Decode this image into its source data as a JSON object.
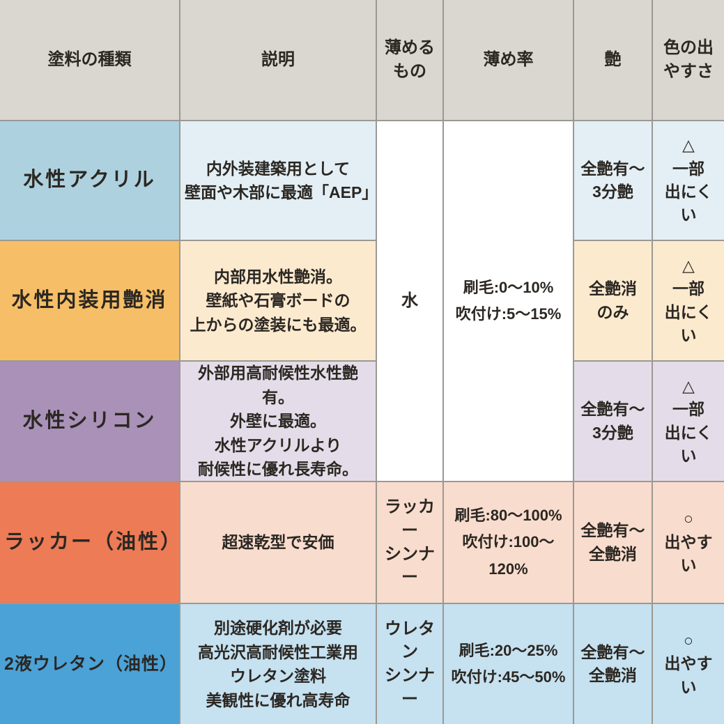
{
  "border_color": "#9b9893",
  "text_color": "#2b2722",
  "header": {
    "bg": "#dad7d1",
    "columns": [
      "塗料の種類",
      "説明",
      "薄める\nもの",
      "薄め率",
      "艶",
      "色の出\nやすさ"
    ]
  },
  "water_group": {
    "bg": "#ffffff",
    "thinner": "水",
    "rate": "刷毛:0〜10%\n吹付け:5〜15%"
  },
  "rows": [
    {
      "name": "水性アクリル",
      "desc": "内外装建築用として\n壁面や木部に最適「AEP」",
      "gloss": "全艶有〜\n3分艶",
      "color_ease": "△\n一部\n出にくい",
      "name_bg": "#aed1df",
      "cell_bg": "#e3eff5"
    },
    {
      "name": "水性内装用艶消",
      "desc": "内部用水性艶消。\n壁紙や石膏ボードの\n上からの塗装にも最適。",
      "gloss": "全艶消\nのみ",
      "color_ease": "△\n一部\n出にくい",
      "name_bg": "#f6be67",
      "cell_bg": "#fceacf"
    },
    {
      "name": "水性シリコン",
      "desc": "外部用高耐候性水性艶有。\n外壁に最適。\n水性アクリルより\n耐候性に優れ長寿命。",
      "gloss": "全艶有〜\n3分艶",
      "color_ease": "△\n一部\n出にくい",
      "name_bg": "#a991b8",
      "cell_bg": "#e4dde9"
    },
    {
      "name": "ラッカー（油性）",
      "desc": "超速乾型で安価",
      "thinner": "ラッカー\nシンナー",
      "rate": "刷毛:80〜100%\n吹付け:100〜120%",
      "gloss": "全艶有〜\n全艶消",
      "color_ease": "○\n出やすい",
      "name_bg": "#ec7b56",
      "cell_bg": "#f8dccd"
    },
    {
      "name": "2液ウレタン（油性）",
      "desc": "別途硬化剤が必要\n高光沢高耐候性工業用\nウレタン塗料\n美観性に優れ高寿命",
      "thinner": "ウレタン\nシンナー",
      "rate": "刷毛:20〜25%\n吹付け:45〜50%",
      "gloss": "全艶有〜\n全艶消",
      "color_ease": "○\n出やすい",
      "name_bg": "#4ba2d7",
      "cell_bg": "#c6e1f0"
    }
  ]
}
